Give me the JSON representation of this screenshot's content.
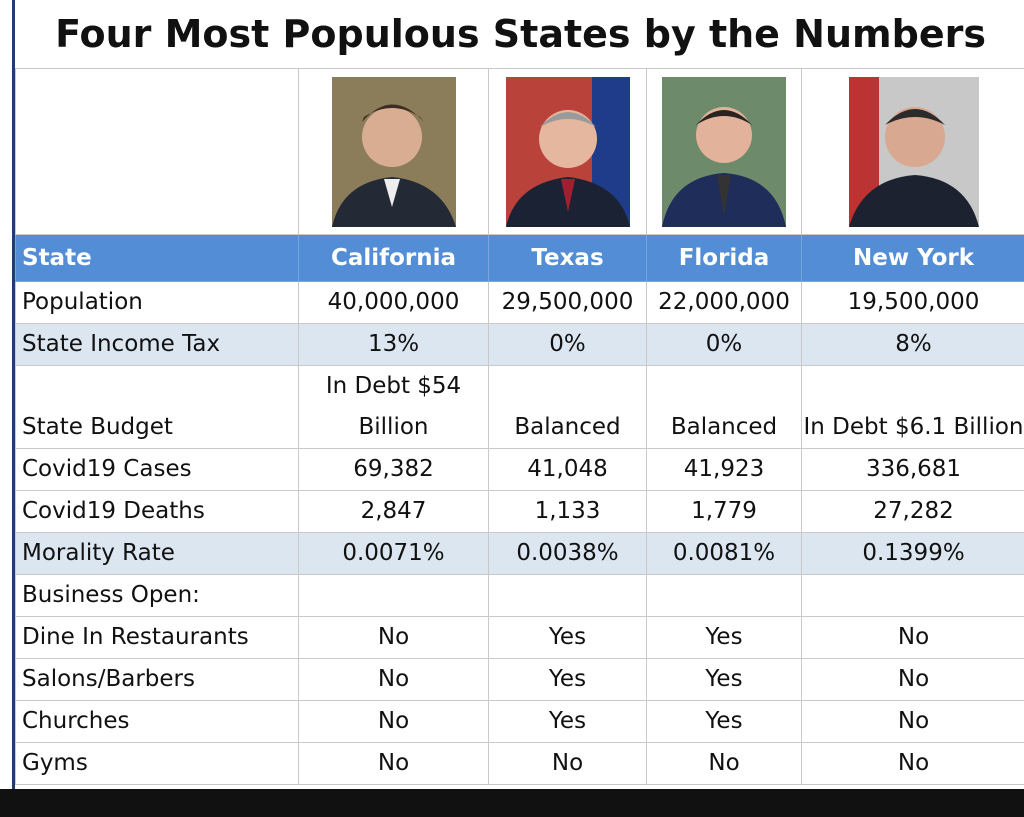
{
  "title": "Four Most Populous States by the Numbers",
  "table": {
    "header": [
      "State",
      "California",
      "Texas",
      "Florida",
      "New York"
    ],
    "rows": [
      [
        "Population",
        "40,000,000",
        "29,500,000",
        "22,000,000",
        "19,500,000"
      ],
      [
        "State Income Tax",
        "13%",
        "0%",
        "0%",
        "8%"
      ],
      [
        "State Budget",
        "In Debt $54 Billion",
        "Balanced",
        "Balanced",
        "In Debt $6.1 Billion"
      ],
      [
        "Covid19 Cases",
        "69,382",
        "41,048",
        "41,923",
        "336,681"
      ],
      [
        "Covid19 Deaths",
        "2,847",
        "1,133",
        "1,779",
        "27,282"
      ],
      [
        "Morality Rate",
        "0.0071%",
        "0.0038%",
        "0.0081%",
        "0.1399%"
      ],
      [
        "Business Open:",
        "",
        "",
        "",
        ""
      ],
      [
        "Dine In Restaurants",
        "No",
        "Yes",
        "Yes",
        "No"
      ],
      [
        "Salons/Barbers",
        "No",
        "Yes",
        "Yes",
        "No"
      ],
      [
        "Churches",
        "No",
        "Yes",
        "Yes",
        "No"
      ],
      [
        "Gyms",
        "No",
        "No",
        "No",
        "No"
      ]
    ]
  }
}
